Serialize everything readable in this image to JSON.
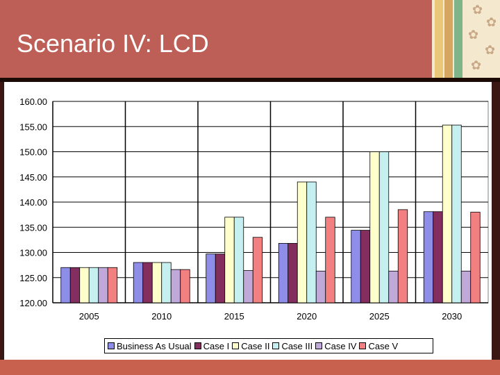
{
  "slide": {
    "title": "Scenario IV: LCD"
  },
  "colors": {
    "header": "#bd5f57",
    "background": "#3a1712",
    "accent_stripes": [
      "#e9c879",
      "#d5a660",
      "#7fb48a"
    ]
  },
  "chart_data": {
    "type": "bar",
    "categories": [
      "2005",
      "2010",
      "2015",
      "2020",
      "2025",
      "2030"
    ],
    "ylim": [
      120,
      160
    ],
    "yticks": [
      "120.00",
      "125.00",
      "130.00",
      "135.00",
      "140.00",
      "145.00",
      "150.00",
      "155.00",
      "160.00"
    ],
    "grid": true,
    "legend_position": "bottom",
    "series": [
      {
        "name": "Business As Usual",
        "color": "#8e8ee8",
        "values": [
          127.0,
          128.0,
          129.7,
          131.8,
          134.4,
          138.1
        ]
      },
      {
        "name": "Case I",
        "color": "#842e60",
        "values": [
          127.0,
          128.0,
          129.7,
          131.8,
          134.4,
          138.1
        ]
      },
      {
        "name": "Case II",
        "color": "#ffffcc",
        "values": [
          127.0,
          128.0,
          137.0,
          144.0,
          150.0,
          155.3
        ]
      },
      {
        "name": "Case III",
        "color": "#c6efef",
        "values": [
          127.0,
          128.0,
          137.0,
          144.0,
          150.0,
          155.3
        ]
      },
      {
        "name": "Case IV",
        "color": "#c0a8d8",
        "values": [
          127.0,
          126.6,
          126.4,
          126.3,
          126.3,
          126.3
        ]
      },
      {
        "name": "Case V",
        "color": "#f28080",
        "values": [
          127.0,
          126.6,
          133.0,
          137.0,
          138.5,
          138.0
        ]
      }
    ]
  }
}
